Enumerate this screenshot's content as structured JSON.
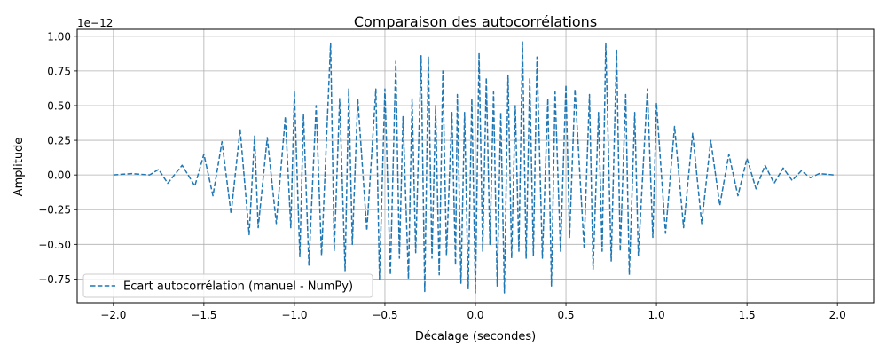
{
  "chart_data": {
    "type": "line",
    "title": "Comparaison des autocorrélations",
    "xlabel": "Décalage (secondes)",
    "ylabel": "Amplitude",
    "offset_text": "1e−12",
    "xlim": [
      -2.2,
      2.2
    ],
    "ylim": [
      -0.92,
      1.05
    ],
    "x_ticks": [
      -2.0,
      -1.5,
      -1.0,
      -0.5,
      0.0,
      0.5,
      1.0,
      1.5,
      2.0
    ],
    "x_tick_labels": [
      "−2.0",
      "−1.5",
      "−1.0",
      "−0.5",
      "0.0",
      "0.5",
      "1.0",
      "1.5",
      "2.0"
    ],
    "y_ticks": [
      -0.75,
      -0.5,
      -0.25,
      0.0,
      0.25,
      0.5,
      0.75,
      1.0
    ],
    "y_tick_labels": [
      "−0.75",
      "−0.50",
      "−0.25",
      "0.00",
      "0.25",
      "0.50",
      "0.75",
      "1.00"
    ],
    "grid": true,
    "legend_position": "lower-left",
    "series": [
      {
        "name": "Ecart autocorrélation (manuel - NumPy)",
        "color": "#1f77b4",
        "style": "dashed",
        "x": [
          -2.0,
          -1.9,
          -1.8,
          -1.75,
          -1.7,
          -1.62,
          -1.55,
          -1.5,
          -1.45,
          -1.4,
          -1.35,
          -1.3,
          -1.25,
          -1.22,
          -1.2,
          -1.15,
          -1.1,
          -1.05,
          -1.02,
          -1.0,
          -0.97,
          -0.95,
          -0.92,
          -0.88,
          -0.85,
          -0.8,
          -0.78,
          -0.75,
          -0.72,
          -0.7,
          -0.68,
          -0.65,
          -0.6,
          -0.55,
          -0.53,
          -0.5,
          -0.47,
          -0.44,
          -0.42,
          -0.4,
          -0.37,
          -0.35,
          -0.33,
          -0.3,
          -0.28,
          -0.26,
          -0.24,
          -0.22,
          -0.2,
          -0.18,
          -0.16,
          -0.13,
          -0.11,
          -0.1,
          -0.08,
          -0.06,
          -0.04,
          -0.02,
          0.0,
          0.02,
          0.04,
          0.06,
          0.08,
          0.1,
          0.12,
          0.14,
          0.16,
          0.18,
          0.2,
          0.22,
          0.24,
          0.26,
          0.28,
          0.3,
          0.32,
          0.34,
          0.37,
          0.4,
          0.42,
          0.44,
          0.47,
          0.5,
          0.52,
          0.55,
          0.6,
          0.63,
          0.65,
          0.68,
          0.7,
          0.72,
          0.75,
          0.78,
          0.8,
          0.83,
          0.85,
          0.88,
          0.9,
          0.95,
          0.98,
          1.0,
          1.05,
          1.1,
          1.15,
          1.2,
          1.25,
          1.3,
          1.35,
          1.4,
          1.45,
          1.5,
          1.55,
          1.6,
          1.65,
          1.7,
          1.75,
          1.8,
          1.85,
          1.9,
          1.98
        ],
        "values": [
          0.0,
          0.01,
          0.0,
          0.04,
          -0.06,
          0.07,
          -0.08,
          0.15,
          -0.15,
          0.24,
          -0.28,
          0.33,
          -0.43,
          0.28,
          -0.38,
          0.27,
          -0.35,
          0.42,
          -0.38,
          0.6,
          -0.59,
          0.44,
          -0.65,
          0.5,
          -0.58,
          0.95,
          -0.55,
          0.55,
          -0.69,
          0.62,
          -0.5,
          0.55,
          -0.4,
          0.62,
          -0.75,
          0.62,
          -0.72,
          0.82,
          -0.6,
          0.42,
          -0.75,
          0.55,
          -0.56,
          0.86,
          -0.84,
          0.85,
          -0.6,
          0.5,
          -0.72,
          0.75,
          -0.58,
          0.45,
          -0.65,
          0.58,
          -0.78,
          0.45,
          -0.82,
          0.55,
          -0.85,
          0.88,
          -0.55,
          0.7,
          -0.5,
          0.6,
          -0.8,
          0.45,
          -0.85,
          0.72,
          -0.6,
          0.5,
          -0.55,
          0.96,
          -0.6,
          0.7,
          -0.58,
          0.85,
          -0.6,
          0.55,
          -0.8,
          0.6,
          -0.55,
          0.65,
          -0.45,
          0.62,
          -0.52,
          0.58,
          -0.68,
          0.45,
          -0.55,
          0.95,
          -0.62,
          0.9,
          -0.55,
          0.58,
          -0.72,
          0.45,
          -0.58,
          0.62,
          -0.45,
          0.52,
          -0.42,
          0.35,
          -0.38,
          0.3,
          -0.35,
          0.25,
          -0.22,
          0.15,
          -0.15,
          0.12,
          -0.1,
          0.07,
          -0.06,
          0.05,
          -0.04,
          0.03,
          -0.02,
          0.01,
          0.0
        ]
      }
    ]
  }
}
